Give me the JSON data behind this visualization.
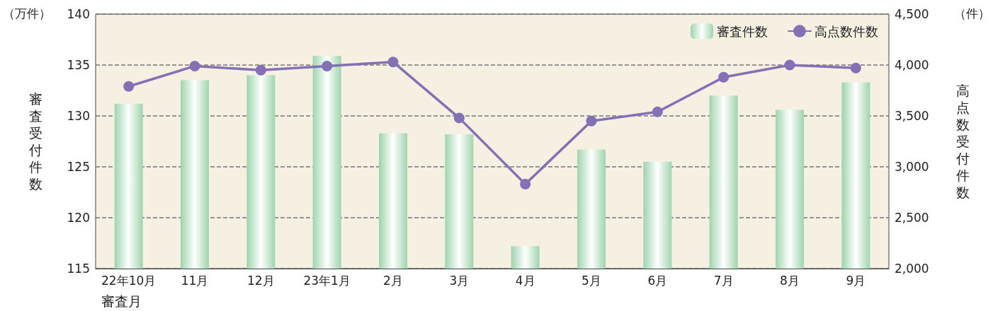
{
  "chart_data": {
    "type": "bar",
    "categories": [
      "22年10月",
      "11月",
      "12月",
      "23年1月",
      "2月",
      "3月",
      "4月",
      "5月",
      "6月",
      "7月",
      "8月",
      "9月"
    ],
    "series": [
      {
        "name": "審査件数",
        "color": "#9fd4ae",
        "values": [
          131.2,
          133.5,
          134.0,
          135.9,
          128.3,
          128.2,
          117.2,
          126.7,
          125.5,
          132.0,
          130.6,
          133.3
        ]
      },
      {
        "name": "高点数件数",
        "type": "line",
        "axis": "y2",
        "color": "#8470b4",
        "values": [
          3790,
          3990,
          3950,
          3990,
          4030,
          3480,
          2830,
          3450,
          3540,
          3880,
          4000,
          3970
        ]
      }
    ],
    "xlabel": "審査月",
    "ylabel": "審査受付件数",
    "y2label": "高点数受付件数",
    "ylim": [
      115,
      140
    ],
    "yticks": [
      115,
      120,
      125,
      130,
      135,
      140
    ],
    "y2lim": [
      2000,
      4500
    ],
    "y2ticks": [
      {
        "value": 2000,
        "label": "2,000"
      },
      {
        "value": 2500,
        "label": "2,500"
      },
      {
        "value": 3000,
        "label": "3,000"
      },
      {
        "value": 3500,
        "label": "3,500"
      },
      {
        "value": 4000,
        "label": "4,000"
      },
      {
        "value": 4500,
        "label": "4,500"
      }
    ],
    "annotations": [
      "（万件）",
      "（件）"
    ],
    "grid": "y",
    "legend": "top right",
    "marker": "circle",
    "line_style": "solid"
  }
}
